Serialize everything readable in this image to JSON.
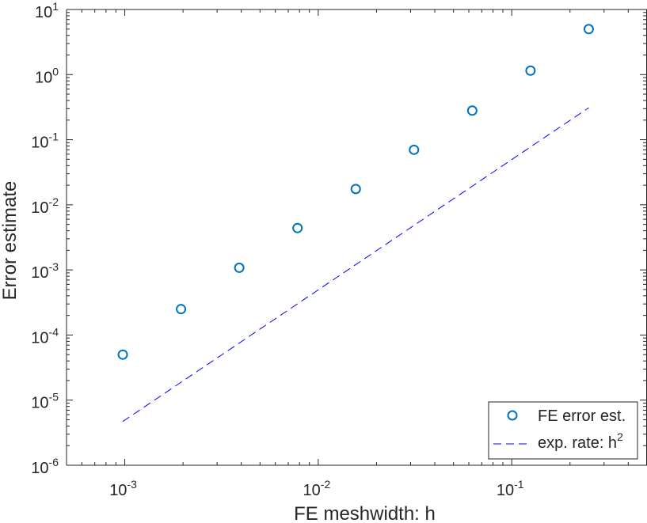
{
  "chart_data": {
    "type": "scatter",
    "xscale": "log",
    "yscale": "log",
    "xlim": [
      0.0005,
      0.5
    ],
    "ylim": [
      1e-06,
      10
    ],
    "xlabel": "FE meshwidth: h",
    "ylabel": "Error estimate",
    "x_ticks": [
      {
        "value": 0.001,
        "base": "10",
        "exp": "-3"
      },
      {
        "value": 0.01,
        "base": "10",
        "exp": "-2"
      },
      {
        "value": 0.1,
        "base": "10",
        "exp": "-1"
      }
    ],
    "y_ticks": [
      {
        "value": 1e-06,
        "base": "10",
        "exp": "-6"
      },
      {
        "value": 1e-05,
        "base": "10",
        "exp": "-5"
      },
      {
        "value": 0.0001,
        "base": "10",
        "exp": "-4"
      },
      {
        "value": 0.001,
        "base": "10",
        "exp": "-3"
      },
      {
        "value": 0.01,
        "base": "10",
        "exp": "-2"
      },
      {
        "value": 0.1,
        "base": "10",
        "exp": "-1"
      },
      {
        "value": 1,
        "base": "10",
        "exp": "0"
      },
      {
        "value": 10,
        "base": "10",
        "exp": "1"
      }
    ],
    "series": [
      {
        "name": "FE error est.",
        "style": "markers",
        "marker": "circle",
        "color": "#0072bd",
        "x": [
          0.0009765625,
          0.001953125,
          0.00390625,
          0.0078125,
          0.015625,
          0.03125,
          0.0625,
          0.125,
          0.25
        ],
        "y": [
          5e-05,
          0.00025,
          0.00108,
          0.0044,
          0.0175,
          0.07,
          0.28,
          1.15,
          5.0
        ]
      },
      {
        "name": "exp. rate: h",
        "name_superscript": "2",
        "style": "dashed-line",
        "color": "#0000ff",
        "x": [
          0.0009765625,
          0.25
        ],
        "y": [
          4.7e-06,
          0.31
        ]
      }
    ],
    "legend": {
      "position": "bottom-right"
    },
    "grid": false
  }
}
